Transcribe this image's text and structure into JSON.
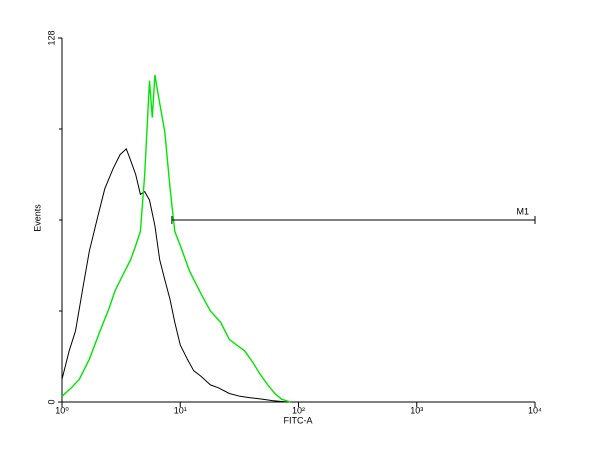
{
  "chart_data": {
    "type": "line",
    "xscale": "log",
    "xlabel": "FITC-A",
    "ylabel": "Events",
    "xlim": [
      1,
      10000
    ],
    "xticks": [
      {
        "value": 1,
        "label": "10⁰"
      },
      {
        "value": 10,
        "label": "10¹"
      },
      {
        "value": 100,
        "label": "10²"
      },
      {
        "value": 1000,
        "label": "10³"
      },
      {
        "value": 10000,
        "label": "10⁴"
      }
    ],
    "ylim": [
      0,
      128
    ],
    "yticks": [
      0,
      128
    ],
    "yminorticks": [
      32,
      64,
      96
    ],
    "series": [
      {
        "color": "#000000",
        "x": [
          1.0,
          1.15,
          1.3,
          1.5,
          1.7,
          2.0,
          2.3,
          2.7,
          3.1,
          3.5,
          3.8,
          4.2,
          4.6,
          5.0,
          5.5,
          6.1,
          6.7,
          7.4,
          8.2,
          9.0,
          10,
          11.5,
          13,
          15,
          18,
          21,
          26,
          32,
          39,
          50,
          60,
          80
        ],
        "values": [
          8,
          18,
          25,
          40,
          53,
          65,
          75,
          82,
          87,
          89,
          85,
          80,
          73,
          74,
          71,
          62,
          50,
          43,
          36,
          28,
          20,
          15,
          11,
          9,
          6,
          5,
          3,
          2,
          1.5,
          1,
          0.5,
          0
        ]
      },
      {
        "color": "#00e600",
        "x": [
          1.0,
          1.2,
          1.4,
          1.7,
          2.1,
          2.5,
          2.8,
          3.3,
          3.8,
          4.2,
          4.6,
          5.0,
          5.5,
          5.8,
          6.1,
          6.7,
          7.4,
          8.2,
          9.0,
          10,
          12,
          15,
          18,
          22,
          26,
          30,
          35,
          41,
          47,
          55,
          63,
          72,
          85
        ],
        "values": [
          2,
          5,
          8,
          15,
          25,
          33,
          39,
          45,
          50,
          55,
          60,
          80,
          113,
          100,
          115,
          105,
          95,
          75,
          60,
          55,
          46,
          38,
          32,
          28,
          22,
          20,
          18,
          14,
          10,
          6,
          3,
          1,
          0
        ]
      }
    ],
    "markers": [
      {
        "label": "M1",
        "x1": 8.5,
        "x2": 10000,
        "y": 64
      }
    ]
  }
}
